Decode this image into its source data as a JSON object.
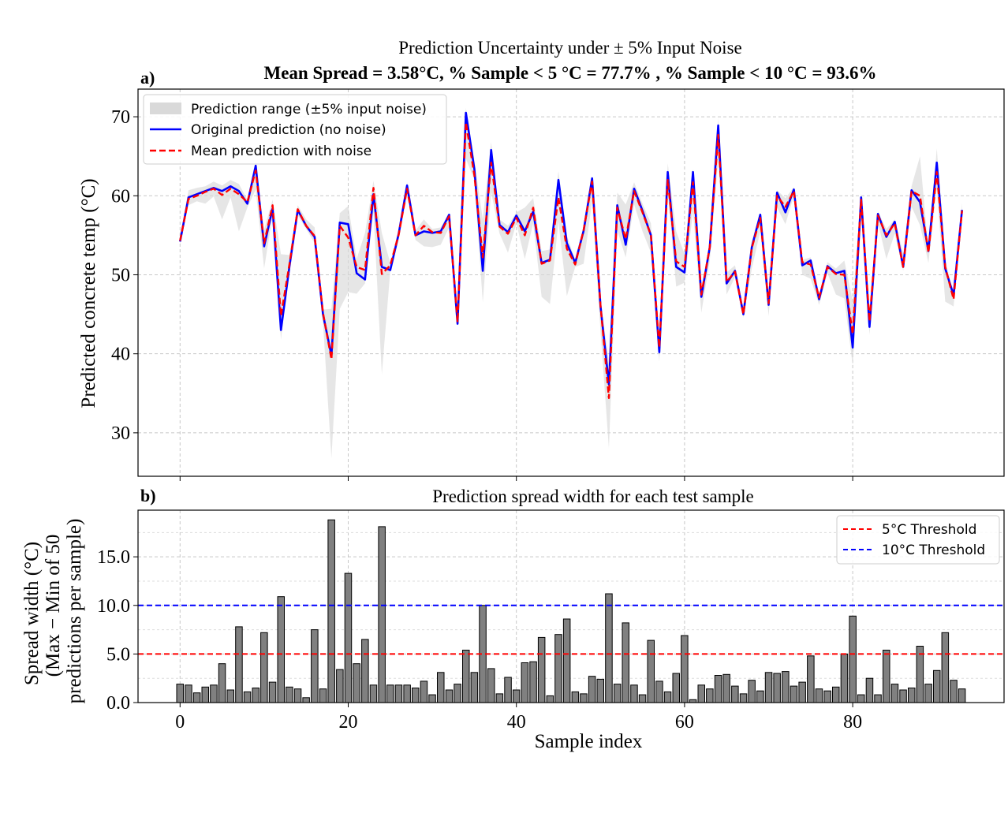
{
  "figure": {
    "title_line1": "Prediction Uncertainty under ± 5% Input Noise",
    "title_line2": "Mean Spread = 3.58°C,  % Sample < 5 °C = 77.7% ,  % Sample < 10 °C = 93.6%"
  },
  "chart_data": [
    {
      "panel_label": "a)",
      "type": "line",
      "title": "",
      "xlabel": "",
      "ylabel": "Predicted concrete temp (°C)",
      "xlim": [
        -5,
        98
      ],
      "ylim": [
        24.5,
        73.5
      ],
      "yticks": [
        30,
        40,
        50,
        60,
        70
      ],
      "xticks": [
        0,
        20,
        40,
        60,
        80
      ],
      "grid": true,
      "legend_position": "top-left",
      "legend": [
        {
          "label": "Prediction range (±5% input noise)",
          "kind": "band",
          "color": "#d9d9d9"
        },
        {
          "label": "Original prediction (no noise)",
          "kind": "line",
          "color": "#0000ff"
        },
        {
          "label": "Mean prediction with noise",
          "kind": "dashed",
          "color": "#ff0000"
        }
      ],
      "x": [
        0,
        1,
        2,
        3,
        4,
        5,
        6,
        7,
        8,
        9,
        10,
        11,
        12,
        13,
        14,
        15,
        16,
        17,
        18,
        19,
        20,
        21,
        22,
        23,
        24,
        25,
        26,
        27,
        28,
        29,
        30,
        31,
        32,
        33,
        34,
        35,
        36,
        37,
        38,
        39,
        40,
        41,
        42,
        43,
        44,
        45,
        46,
        47,
        48,
        49,
        50,
        51,
        52,
        53,
        54,
        55,
        56,
        57,
        58,
        59,
        60,
        61,
        62,
        63,
        64,
        65,
        66,
        67,
        68,
        69,
        70,
        71,
        72,
        73,
        74,
        75,
        76,
        77,
        78,
        79,
        80,
        81,
        82,
        83,
        84,
        85,
        86,
        87,
        88,
        89,
        90,
        91,
        92,
        93
      ],
      "series": [
        {
          "name": "Original prediction (no noise)",
          "color": "#0000ff",
          "values": [
            54.2,
            59.8,
            60.2,
            60.6,
            61.0,
            60.6,
            61.2,
            60.6,
            59.0,
            63.8,
            53.6,
            58.4,
            43.0,
            51.0,
            58.2,
            56.2,
            54.8,
            45.0,
            39.8,
            56.6,
            56.4,
            50.2,
            49.4,
            60.2,
            51.0,
            50.6,
            55.2,
            61.3,
            55.0,
            55.5,
            55.3,
            55.5,
            57.6,
            43.8,
            70.5,
            63.4,
            50.5,
            65.8,
            56.3,
            55.4,
            57.5,
            55.5,
            58.0,
            51.5,
            51.9,
            62.0,
            54.0,
            51.5,
            55.6,
            62.2,
            46.1,
            36.1,
            58.8,
            53.8,
            60.9,
            58.1,
            55.0,
            40.2,
            63.0,
            51.0,
            50.3,
            63.0,
            47.2,
            53.5,
            68.9,
            48.9,
            50.5,
            45.0,
            53.5,
            57.6,
            46.2,
            60.4,
            57.9,
            60.8,
            51.2,
            51.8,
            46.9,
            51.1,
            50.2,
            50.5,
            40.8,
            59.8,
            43.4,
            57.7,
            54.8,
            56.7,
            51.0,
            60.7,
            59.2,
            53.0,
            64.2,
            50.8,
            47.4,
            58.2
          ]
        },
        {
          "name": "Mean prediction with noise",
          "color": "#ff0000",
          "values": [
            54.3,
            59.6,
            60.0,
            60.5,
            60.9,
            60.1,
            60.9,
            60.2,
            59.2,
            63.2,
            54.0,
            58.8,
            44.8,
            51.3,
            58.3,
            56.2,
            54.9,
            45.2,
            39.3,
            56.2,
            54.7,
            51.0,
            50.6,
            61.0,
            50.1,
            51.2,
            55.1,
            60.9,
            55.0,
            56.2,
            55.4,
            55.3,
            57.4,
            44.0,
            69.3,
            62.6,
            52.2,
            64.2,
            56.1,
            55.2,
            57.2,
            55.0,
            58.5,
            51.4,
            51.8,
            59.8,
            53.3,
            51.3,
            55.7,
            61.8,
            46.2,
            34.4,
            58.5,
            54.5,
            60.6,
            57.9,
            55.0,
            40.8,
            62.0,
            51.7,
            51.0,
            61.7,
            47.5,
            53.5,
            67.7,
            49.1,
            50.4,
            45.0,
            53.4,
            57.2,
            46.4,
            60.0,
            58.6,
            60.6,
            51.6,
            51.3,
            47.1,
            51.0,
            50.1,
            50.0,
            42.5,
            59.5,
            44.1,
            57.5,
            55.0,
            56.5,
            51.0,
            60.6,
            60.0,
            52.8,
            63.0,
            51.0,
            46.9,
            58.1
          ]
        }
      ],
      "band": {
        "name": "Prediction range (±5% input noise)",
        "lower": [
          53.8,
          58.8,
          59.3,
          59.0,
          59.9,
          57.0,
          59.8,
          55.5,
          58.5,
          60.8,
          50.8,
          57.5,
          41.8,
          50.7,
          57.5,
          55.8,
          54.0,
          44.0,
          26.8,
          45.7,
          47.8,
          47.6,
          48.9,
          58.0,
          37.4,
          50.5,
          54.4,
          60.0,
          54.4,
          53.6,
          53.5,
          53.8,
          56.0,
          43.6,
          64.7,
          62.0,
          46.5,
          60.5,
          55.2,
          52.8,
          56.5,
          52.0,
          56.5,
          47.2,
          46.3,
          56.7,
          47.3,
          51.0,
          51.4,
          59.3,
          43.0,
          28.0,
          55.6,
          52.2,
          58.9,
          55.5,
          52.8,
          39.0,
          60.5,
          48.5,
          49.0,
          58.0,
          45.2,
          51.8,
          64.6,
          47.5,
          49.7,
          44.6,
          50.8,
          55.5,
          44.8,
          58.5,
          56.4,
          60.0,
          50.0,
          49.5,
          46.2,
          50.2,
          47.5,
          47.0,
          38.5,
          57.3,
          42.4,
          56.6,
          52.0,
          55.2,
          50.5,
          58.6,
          56.3,
          51.5,
          61.0,
          46.6,
          46.0,
          57.8
        ],
        "upper": [
          54.8,
          60.7,
          61.0,
          61.2,
          61.8,
          61.3,
          62.0,
          61.5,
          59.5,
          64.1,
          55.7,
          59.5,
          52.6,
          52.5,
          58.8,
          57.0,
          56.0,
          45.6,
          45.7,
          57.8,
          58.7,
          52.0,
          55.3,
          61.9,
          55.3,
          51.5,
          55.8,
          61.7,
          55.6,
          57.0,
          55.8,
          56.0,
          57.8,
          45.1,
          71.1,
          64.5,
          57.0,
          66.8,
          57.0,
          56.2,
          57.9,
          58.5,
          59.7,
          53.0,
          53.2,
          63.1,
          55.0,
          51.8,
          56.2,
          62.5,
          46.6,
          39.1,
          60.4,
          58.9,
          61.7,
          59.0,
          56.5,
          41.0,
          64.1,
          55.5,
          52.6,
          63.4,
          48.4,
          54.0,
          69.8,
          50.3,
          51.2,
          45.7,
          54.3,
          57.8,
          47.3,
          60.7,
          59.7,
          61.1,
          51.9,
          52.2,
          47.4,
          51.6,
          50.8,
          51.8,
          46.7,
          60.3,
          44.8,
          58.0,
          55.8,
          57.0,
          52.7,
          61.2,
          65.0,
          53.0,
          66.0,
          52.0,
          47.3,
          59.1
        ]
      }
    },
    {
      "panel_label": "b)",
      "type": "bar",
      "title": "Prediction spread width for each test sample",
      "xlabel": "Sample index",
      "ylabel": "Spread width (°C)\n(Max − Min of 50\npredictions per sample)",
      "ylabel_lines": [
        "Spread width (°C)",
        "(Max − Min of 50",
        "predictions per sample)"
      ],
      "xlim": [
        -5,
        98
      ],
      "ylim": [
        0,
        19.8
      ],
      "xticks": [
        0,
        20,
        40,
        60,
        80
      ],
      "yticks": [
        0.0,
        5.0,
        10.0,
        15.0
      ],
      "ytick_labels": [
        "0.0",
        "5.0",
        "10.0",
        "15.0"
      ],
      "grid": true,
      "legend_position": "top-right",
      "legend": [
        {
          "label": "5°C Threshold",
          "kind": "dashed",
          "color": "#ff0000"
        },
        {
          "label": "10°C Threshold",
          "kind": "dashed",
          "color": "#0000ff"
        }
      ],
      "thresholds": [
        {
          "name": "5°C Threshold",
          "value": 5,
          "color": "#ff0000"
        },
        {
          "name": "10°C Threshold",
          "value": 10,
          "color": "#0000ff"
        }
      ],
      "bar_color": "#808080",
      "x": [
        0,
        1,
        2,
        3,
        4,
        5,
        6,
        7,
        8,
        9,
        10,
        11,
        12,
        13,
        14,
        15,
        16,
        17,
        18,
        19,
        20,
        21,
        22,
        23,
        24,
        25,
        26,
        27,
        28,
        29,
        30,
        31,
        32,
        33,
        34,
        35,
        36,
        37,
        38,
        39,
        40,
        41,
        42,
        43,
        44,
        45,
        46,
        47,
        48,
        49,
        50,
        51,
        52,
        53,
        54,
        55,
        56,
        57,
        58,
        59,
        60,
        61,
        62,
        63,
        64,
        65,
        66,
        67,
        68,
        69,
        70,
        71,
        72,
        73,
        74,
        75,
        76,
        77,
        78,
        79,
        80,
        81,
        82,
        83,
        84,
        85,
        86,
        87,
        88,
        89,
        90,
        91,
        92,
        93
      ],
      "values": [
        1.9,
        1.8,
        1.0,
        1.6,
        1.8,
        4.0,
        1.3,
        7.8,
        1.1,
        1.5,
        7.2,
        2.1,
        10.9,
        1.6,
        1.4,
        0.5,
        7.5,
        1.4,
        18.8,
        3.4,
        13.3,
        4.0,
        6.5,
        1.8,
        18.1,
        1.8,
        1.8,
        1.8,
        1.5,
        2.2,
        0.8,
        3.1,
        1.3,
        1.9,
        5.4,
        3.1,
        10.0,
        3.5,
        0.9,
        2.6,
        1.3,
        4.1,
        4.2,
        6.7,
        0.7,
        7.0,
        8.6,
        1.1,
        0.9,
        2.7,
        2.4,
        11.2,
        1.9,
        8.2,
        1.8,
        0.8,
        6.4,
        2.2,
        1.1,
        3.0,
        6.9,
        0.3,
        1.8,
        1.4,
        2.8,
        2.9,
        1.7,
        0.9,
        2.3,
        1.2,
        3.1,
        3.0,
        3.2,
        1.7,
        2.1,
        4.8,
        1.4,
        1.2,
        1.6,
        5.0,
        8.9,
        0.8,
        2.5,
        0.8,
        5.4,
        1.9,
        1.3,
        1.5,
        5.8,
        1.9,
        3.3,
        7.2,
        2.3,
        1.4
      ]
    }
  ]
}
